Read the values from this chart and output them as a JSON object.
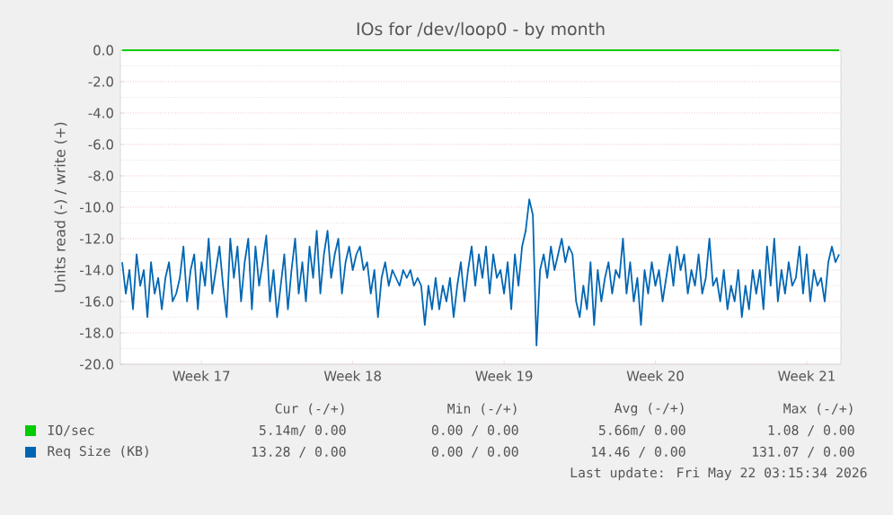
{
  "chart_data": {
    "type": "line",
    "title": "IOs for /dev/loop0 - by month",
    "ylabel": "Units read (-) / write (+)",
    "categories": [
      null,
      null,
      null,
      null,
      null,
      null,
      null,
      null,
      null,
      null,
      null,
      null,
      null,
      null,
      null,
      null,
      null,
      null,
      null,
      null,
      null,
      null,
      "Week 17",
      null,
      null,
      null,
      null,
      null,
      null,
      null,
      null,
      null,
      null,
      null,
      null,
      null,
      null,
      null,
      null,
      null,
      null,
      null,
      null,
      null,
      null,
      null,
      null,
      null,
      null,
      null,
      null,
      null,
      null,
      null,
      null,
      null,
      null,
      null,
      null,
      null,
      null,
      null,
      null,
      null,
      "Week 18",
      null,
      null,
      null,
      null,
      null,
      null,
      null,
      null,
      null,
      null,
      null,
      null,
      null,
      null,
      null,
      null,
      null,
      null,
      null,
      null,
      null,
      null,
      null,
      null,
      null,
      null,
      null,
      null,
      null,
      null,
      null,
      null,
      null,
      null,
      null,
      null,
      null,
      null,
      null,
      null,
      null,
      "Week 19",
      null,
      null,
      null,
      null,
      null,
      null,
      null,
      null,
      null,
      null,
      null,
      null,
      null,
      null,
      null,
      null,
      null,
      null,
      null,
      null,
      null,
      null,
      null,
      null,
      null,
      null,
      null,
      null,
      null,
      null,
      null,
      null,
      null,
      null,
      null,
      null,
      null,
      null,
      null,
      null,
      null,
      "Week 20",
      null,
      null,
      null,
      null,
      null,
      null,
      null,
      null,
      null,
      null,
      null,
      null,
      null,
      null,
      null,
      null,
      null,
      null,
      null,
      null,
      null,
      null,
      null,
      null,
      null,
      null,
      null,
      null,
      null,
      null,
      null,
      null,
      null,
      null,
      null,
      null,
      null,
      null,
      null,
      null,
      null,
      "Week 21",
      null,
      null,
      null,
      null,
      null,
      null,
      null,
      null,
      null
    ],
    "ylim": [
      -20,
      0
    ],
    "yticks": [
      {
        "value": -20,
        "label": "-20.0"
      },
      {
        "value": -18,
        "label": "-18.0"
      },
      {
        "value": -16,
        "label": "-16.0"
      },
      {
        "value": -14,
        "label": "-14.0"
      },
      {
        "value": -12,
        "label": "-12.0"
      },
      {
        "value": -10,
        "label": "-10.0"
      },
      {
        "value": -8,
        "label": "-8.0"
      },
      {
        "value": -6,
        "label": "-6.0"
      },
      {
        "value": -4,
        "label": "-4.0"
      },
      {
        "value": -2,
        "label": "-2.0"
      },
      {
        "value": 0,
        "label": "0.0"
      }
    ],
    "grid": "y",
    "legend": "bottom",
    "marker": "none",
    "line_style": "solid",
    "series": [
      {
        "name": "IO/sec",
        "color": "#00cc00",
        "values": [
          0,
          0,
          0,
          0,
          0,
          0,
          0,
          0,
          0,
          0,
          0,
          0,
          0,
          0,
          0,
          0,
          0,
          0,
          0,
          0,
          0,
          0,
          0,
          0,
          0,
          0,
          0,
          0,
          0,
          0,
          0,
          0,
          0,
          0,
          0,
          0,
          0,
          0,
          0,
          0,
          0,
          0,
          0,
          0,
          0,
          0,
          0,
          0,
          0,
          0,
          0,
          0,
          0,
          0,
          0,
          0,
          0,
          0,
          0,
          0,
          0,
          0,
          0,
          0,
          0,
          0,
          0,
          0,
          0,
          0,
          0,
          0,
          0,
          0,
          0,
          0,
          0,
          0,
          0,
          0,
          0,
          0,
          0,
          0,
          0,
          0,
          0,
          0,
          0,
          0,
          0,
          0,
          0,
          0,
          0,
          0,
          0,
          0,
          0,
          0,
          0,
          0,
          0,
          0,
          0,
          0,
          0,
          0,
          0,
          0,
          0,
          0,
          0,
          0,
          0,
          0,
          0,
          0,
          0,
          0,
          0,
          0,
          0,
          0,
          0,
          0,
          0,
          0,
          0,
          0,
          0,
          0,
          0,
          0,
          0,
          0,
          0,
          0,
          0,
          0,
          0,
          0,
          0,
          0,
          0,
          0,
          0,
          0,
          0,
          0,
          0,
          0,
          0,
          0,
          0,
          0,
          0,
          0,
          0,
          0,
          0,
          0,
          0,
          0,
          0,
          0,
          0,
          0,
          0,
          0,
          0,
          0,
          0,
          0,
          0,
          0,
          0,
          0,
          0,
          0,
          0,
          0,
          0,
          0,
          0,
          0,
          0,
          0,
          0,
          0,
          0,
          0,
          0,
          0,
          0,
          0,
          0,
          0,
          0,
          0
        ]
      },
      {
        "name": "Req Size (KB)",
        "color": "#0066b3",
        "values": [
          -13.5,
          -15.5,
          -14,
          -16.5,
          -13,
          -15,
          -14,
          -17,
          -13.5,
          -15.5,
          -14.5,
          -16.5,
          -14.5,
          -13.5,
          -16,
          -15.5,
          -14.5,
          -12.5,
          -16,
          -14,
          -13,
          -16.5,
          -13.5,
          -15,
          -12,
          -15.5,
          -14,
          -12.5,
          -15,
          -17,
          -12,
          -14.5,
          -12.5,
          -16,
          -13.5,
          -12,
          -16.5,
          -12.5,
          -15,
          -13.5,
          -11.8,
          -16,
          -14,
          -17,
          -15,
          -13,
          -16.5,
          -14,
          -12,
          -15.5,
          -13.5,
          -16,
          -12.5,
          -14.5,
          -11.5,
          -15.5,
          -13,
          -11.5,
          -14.5,
          -13,
          -12,
          -15.5,
          -13.5,
          -12.5,
          -14,
          -13,
          -12.5,
          -14,
          -13.5,
          -15.5,
          -14,
          -17,
          -14.5,
          -13.5,
          -15,
          -14,
          -14.5,
          -15,
          -14,
          -14.5,
          -14,
          -15,
          -14.5,
          -15,
          -17.5,
          -15,
          -16.5,
          -14.5,
          -16.5,
          -15,
          -16,
          -14.5,
          -17,
          -15,
          -13.5,
          -16,
          -14,
          -12.5,
          -15,
          -13,
          -14.5,
          -12.5,
          -15.5,
          -13,
          -14.5,
          -14,
          -15.5,
          -13.5,
          -16.5,
          -13,
          -15,
          -12.5,
          -11.5,
          -9.5,
          -10.5,
          -18.8,
          -14,
          -13,
          -14.5,
          -12.5,
          -14,
          -13,
          -12,
          -13.5,
          -12.5,
          -13,
          -16,
          -17,
          -15,
          -16.5,
          -13.5,
          -17.5,
          -14,
          -16,
          -14.5,
          -13.5,
          -15.5,
          -14,
          -14.5,
          -12,
          -15.5,
          -13.5,
          -16,
          -14.5,
          -17.5,
          -14,
          -15.5,
          -13.5,
          -15,
          -14,
          -16,
          -14.5,
          -13,
          -15,
          -12.5,
          -14,
          -13,
          -15.5,
          -14,
          -15,
          -13,
          -15.5,
          -14.5,
          -12,
          -15,
          -14.5,
          -16,
          -14,
          -16.5,
          -15,
          -16,
          -14,
          -17,
          -15,
          -16.5,
          -14,
          -15.5,
          -14,
          -16.5,
          -12.5,
          -15,
          -12,
          -16,
          -14,
          -15.5,
          -13.5,
          -15,
          -14.5,
          -12.5,
          -15.5,
          -13,
          -16,
          -14,
          -15,
          -14.5,
          -16,
          -13.5,
          -12.5,
          -13.5,
          -13
        ]
      }
    ],
    "annotations": [
      "Cur (-/+)",
      "Min (-/+)",
      "Avg (-/+)",
      "Max (-/+)",
      "5.14m/ 0.00",
      "0.00 / 0.00",
      "5.66m/ 0.00",
      "1.08 / 0.00",
      "13.28 / 0.00",
      "0.00 / 0.00",
      "14.46 / 0.00",
      "131.07 / 0.00",
      "Last update: Fri May 22 03:15:34 2026"
    ]
  }
}
